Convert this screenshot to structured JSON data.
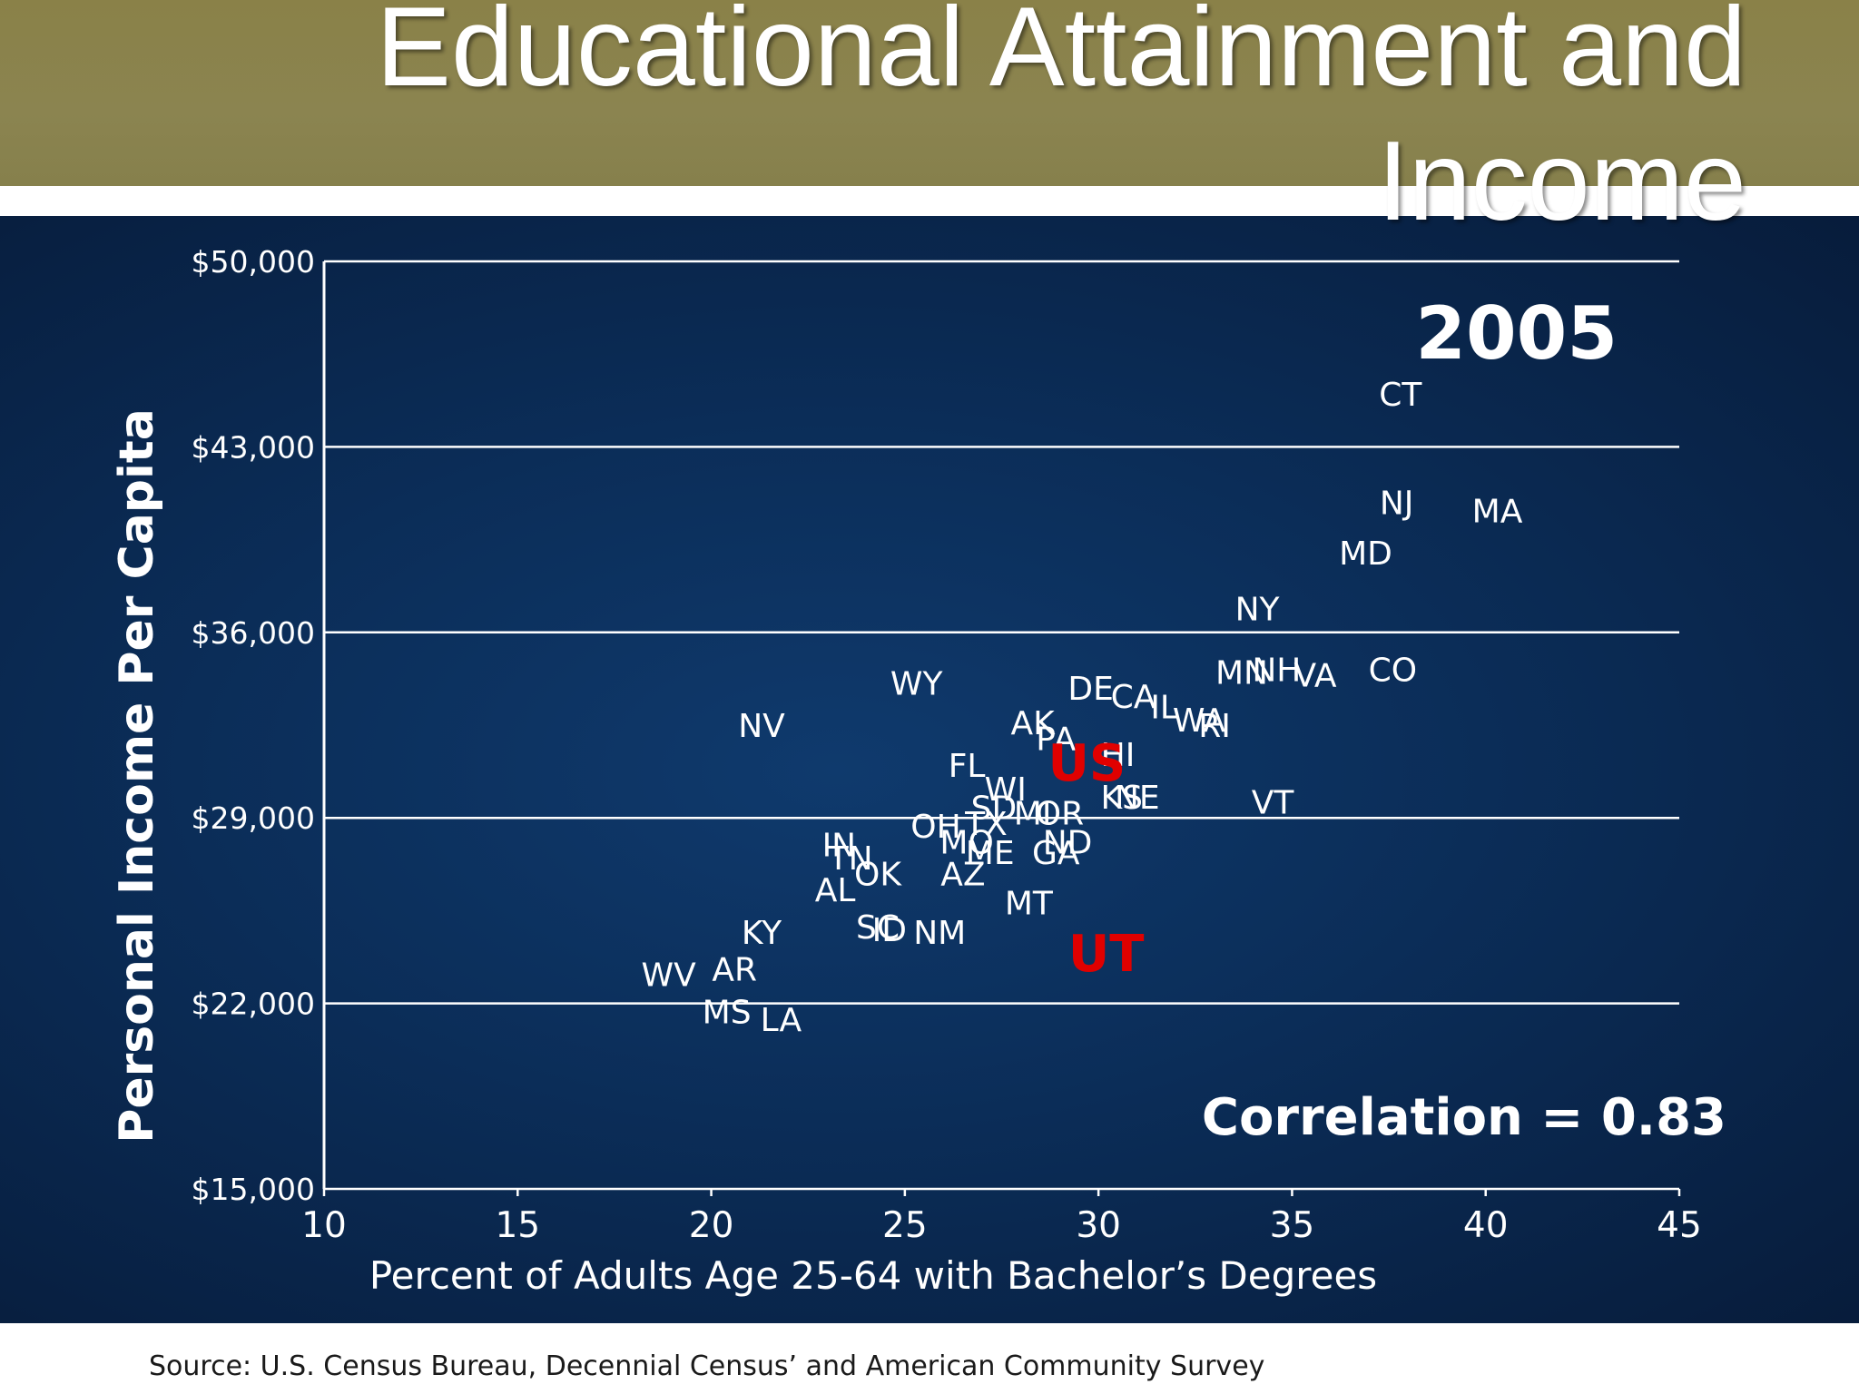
{
  "slide": {
    "title": "Educational Attainment and Income",
    "source": "Source:  U.S. Census Bureau, Decennial Census’ and American Community Survey"
  },
  "colors": {
    "header": "#8a8148",
    "panel": "#0b2d58",
    "text": "#ffffff",
    "highlight": "#e00000"
  },
  "chart_data": {
    "type": "scatter",
    "xlabel": "Percent of Adults Age 25-64 with Bachelor’s Degrees",
    "ylabel": "Personal Income Per Capita",
    "xlim": [
      10,
      45
    ],
    "ylim": [
      15000,
      50000
    ],
    "xticks": [
      10,
      15,
      20,
      25,
      30,
      35,
      40,
      45
    ],
    "xtick_labels": [
      "10",
      "15",
      "20",
      "25",
      "30",
      "35",
      "40",
      "45"
    ],
    "yticks": [
      15000,
      22000,
      29000,
      36000,
      43000,
      50000
    ],
    "ytick_labels": [
      "$15,000",
      "$22,000",
      "$29,000",
      "$36,000",
      "$43,000",
      "$50,000"
    ],
    "grid": "horizontal",
    "annotations": {
      "year": "2005",
      "correlation": "Correlation = 0.83"
    },
    "points": [
      {
        "label": "CT",
        "x": 37.8,
        "y": 45000
      },
      {
        "label": "NJ",
        "x": 37.7,
        "y": 40900
      },
      {
        "label": "MA",
        "x": 40.3,
        "y": 40600
      },
      {
        "label": "MD",
        "x": 36.9,
        "y": 39000
      },
      {
        "label": "NY",
        "x": 34.1,
        "y": 36900
      },
      {
        "label": "MN",
        "x": 33.7,
        "y": 34500
      },
      {
        "label": "NH",
        "x": 34.6,
        "y": 34600
      },
      {
        "label": "VA",
        "x": 35.6,
        "y": 34400
      },
      {
        "label": "CO",
        "x": 37.6,
        "y": 34600
      },
      {
        "label": "WY",
        "x": 25.3,
        "y": 34100
      },
      {
        "label": "DE",
        "x": 29.8,
        "y": 33900
      },
      {
        "label": "CA",
        "x": 30.9,
        "y": 33600
      },
      {
        "label": "IL",
        "x": 31.7,
        "y": 33200
      },
      {
        "label": "WA",
        "x": 32.6,
        "y": 32700
      },
      {
        "label": "RI",
        "x": 33.0,
        "y": 32500
      },
      {
        "label": "NV",
        "x": 21.3,
        "y": 32500
      },
      {
        "label": "AK",
        "x": 28.3,
        "y": 32600
      },
      {
        "label": "PA",
        "x": 28.9,
        "y": 32000
      },
      {
        "label": "HI",
        "x": 30.5,
        "y": 31400
      },
      {
        "label": "FL",
        "x": 26.6,
        "y": 31000
      },
      {
        "label": "WI",
        "x": 27.6,
        "y": 30100
      },
      {
        "label": "KS",
        "x": 30.6,
        "y": 29800
      },
      {
        "label": "NE",
        "x": 31.0,
        "y": 29800
      },
      {
        "label": "VT",
        "x": 34.5,
        "y": 29600
      },
      {
        "label": "SD",
        "x": 27.3,
        "y": 29400
      },
      {
        "label": "MI",
        "x": 28.3,
        "y": 29200
      },
      {
        "label": "OR",
        "x": 29.0,
        "y": 29200
      },
      {
        "label": "TX",
        "x": 27.1,
        "y": 28800
      },
      {
        "label": "OH",
        "x": 25.8,
        "y": 28700
      },
      {
        "label": "MO",
        "x": 26.6,
        "y": 28100
      },
      {
        "label": "ME",
        "x": 27.2,
        "y": 27700
      },
      {
        "label": "ND",
        "x": 29.2,
        "y": 28100
      },
      {
        "label": "GA",
        "x": 28.9,
        "y": 27700
      },
      {
        "label": "IN",
        "x": 23.3,
        "y": 28000
      },
      {
        "label": "TN",
        "x": 23.6,
        "y": 27500
      },
      {
        "label": "OK",
        "x": 24.3,
        "y": 26900
      },
      {
        "label": "AZ",
        "x": 26.5,
        "y": 26900
      },
      {
        "label": "AL",
        "x": 23.2,
        "y": 26300
      },
      {
        "label": "MT",
        "x": 28.2,
        "y": 25800
      },
      {
        "label": "SC",
        "x": 24.3,
        "y": 24900
      },
      {
        "label": "ID",
        "x": 24.6,
        "y": 24800
      },
      {
        "label": "NM",
        "x": 25.9,
        "y": 24700
      },
      {
        "label": "KY",
        "x": 21.3,
        "y": 24700
      },
      {
        "label": "AR",
        "x": 20.6,
        "y": 23300
      },
      {
        "label": "WV",
        "x": 18.9,
        "y": 23100
      },
      {
        "label": "MS",
        "x": 20.4,
        "y": 21700
      },
      {
        "label": "LA",
        "x": 21.8,
        "y": 21400
      }
    ],
    "highlights": [
      {
        "label": "US",
        "x": 29.7,
        "y": 31100
      },
      {
        "label": "UT",
        "x": 30.2,
        "y": 23900
      }
    ]
  }
}
